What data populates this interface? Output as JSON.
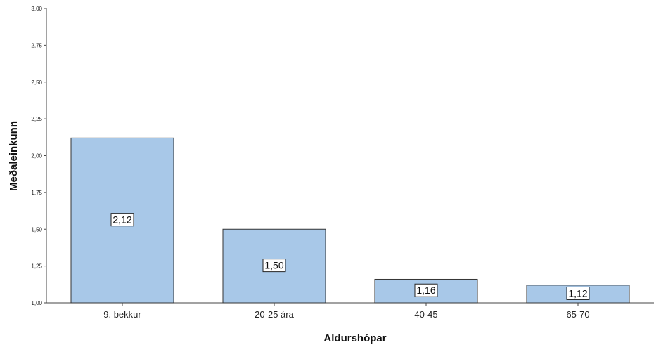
{
  "chart_data": {
    "type": "bar",
    "categories": [
      "9. bekkur",
      "20-25 ára",
      "40-45",
      "65-70"
    ],
    "values": [
      2.12,
      1.5,
      1.16,
      1.12
    ],
    "data_labels": [
      "2,12",
      "1,50",
      "1,16",
      "1,12"
    ],
    "title": "",
    "xlabel": "Aldurshópar",
    "ylabel": "Meðaleinkunn",
    "ylim": [
      1.0,
      3.0
    ],
    "yticks": [
      1.0,
      1.25,
      1.5,
      1.75,
      2.0,
      2.25,
      2.5,
      2.75,
      3.0
    ],
    "ytick_labels": [
      "1,00",
      "1,25",
      "1,50",
      "1,75",
      "2,00",
      "2,25",
      "2,50",
      "2,75",
      "3,00"
    ],
    "grid": false,
    "legend": "none",
    "colors": {
      "bar_fill": "#a8c8e8",
      "bar_stroke": "#333333",
      "axis": "#444444"
    }
  }
}
